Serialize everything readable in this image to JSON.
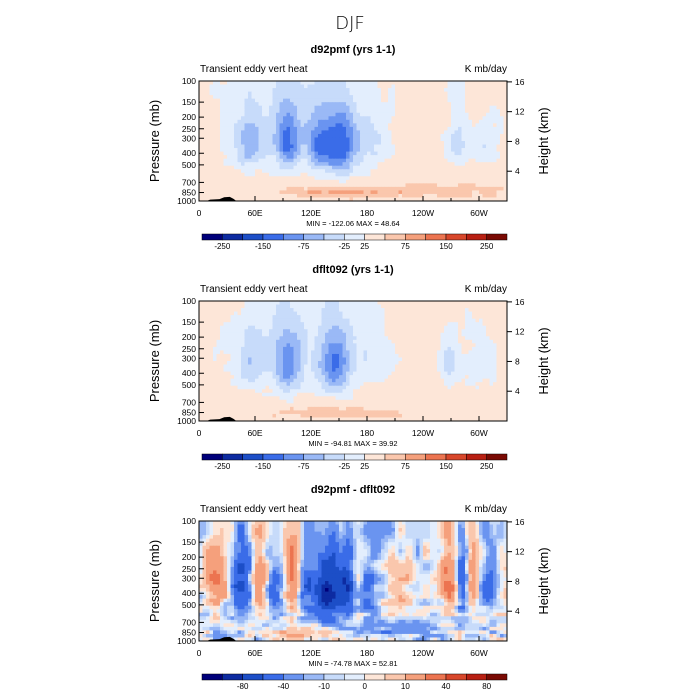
{
  "main_title": "DJF",
  "palette": [
    "#00007a",
    "#0d2ba1",
    "#1c4ec7",
    "#3a6ce8",
    "#6a94f0",
    "#9ab9f6",
    "#c7dbfa",
    "#e3eefd",
    "#fde6d8",
    "#fac7ad",
    "#f5a07c",
    "#ec7450",
    "#d8472b",
    "#b81f12",
    "#7a0a03"
  ],
  "chart_data": [
    {
      "type": "heatmap",
      "title": "d92pmf (yrs 1-1)",
      "left_label": "Transient eddy vert heat",
      "right_label": "K mb/day",
      "xlabel": "",
      "ylabel": "Pressure (mb)",
      "ylabel_right": "Height (km)",
      "x_ticks": [
        "0",
        "60E",
        "120E",
        "180",
        "120W",
        "60W"
      ],
      "x_tick_values": [
        0,
        60,
        120,
        180,
        240,
        300
      ],
      "xlim": [
        0,
        330
      ],
      "y_ticks": [
        "100",
        "150",
        "200",
        "250",
        "300",
        "400",
        "500",
        "700",
        "850",
        "1000"
      ],
      "y_tick_values": [
        100,
        150,
        200,
        250,
        300,
        400,
        500,
        700,
        850,
        1000
      ],
      "ylim": [
        1000,
        100
      ],
      "height_ticks": [
        "4",
        "8",
        "12",
        "16"
      ],
      "height_tick_values": [
        4,
        8,
        12,
        16
      ],
      "stats": "MIN = -122.06   MAX = 48.64",
      "colorbar_labels": [
        "-250",
        "-150",
        "-75",
        "-25",
        "25",
        "75",
        "150",
        "250"
      ],
      "colorbar_label_index": [
        1,
        3,
        5,
        7,
        8,
        10,
        12,
        14
      ],
      "features": [
        {
          "lon": 95,
          "p": 350,
          "amp": -90,
          "sx": 9,
          "sp": 140
        },
        {
          "lon": 130,
          "p": 350,
          "amp": -95,
          "sx": 10,
          "sp": 140
        },
        {
          "lon": 153,
          "p": 360,
          "amp": -120,
          "sx": 10,
          "sp": 150
        },
        {
          "lon": 52,
          "p": 350,
          "amp": -55,
          "sx": 12,
          "sp": 130
        },
        {
          "lon": 183,
          "p": 330,
          "amp": -40,
          "sx": 14,
          "sp": 130
        },
        {
          "lon": 278,
          "p": 330,
          "amp": -45,
          "sx": 8,
          "sp": 110
        },
        {
          "lon": 308,
          "p": 330,
          "amp": -35,
          "sx": 10,
          "sp": 110
        },
        {
          "lon": 100,
          "p": 250,
          "amp": -35,
          "sx": 45,
          "sp": 150
        },
        {
          "lon": 150,
          "p": 850,
          "amp": 45,
          "sx": 45,
          "sp": 60
        },
        {
          "lon": 270,
          "p": 820,
          "amp": 25,
          "sx": 60,
          "sp": 80
        }
      ],
      "base": 10,
      "noise": 10
    },
    {
      "type": "heatmap",
      "title": "dflt092 (yrs 1-1)",
      "left_label": "Transient eddy vert heat",
      "right_label": "K mb/day",
      "xlabel": "",
      "ylabel": "Pressure (mb)",
      "ylabel_right": "Height (km)",
      "x_ticks": [
        "0",
        "60E",
        "120E",
        "180",
        "120W",
        "60W"
      ],
      "x_tick_values": [
        0,
        60,
        120,
        180,
        240,
        300
      ],
      "xlim": [
        0,
        330
      ],
      "y_ticks": [
        "100",
        "150",
        "200",
        "250",
        "300",
        "400",
        "500",
        "700",
        "850",
        "1000"
      ],
      "y_tick_values": [
        100,
        150,
        200,
        250,
        300,
        400,
        500,
        700,
        850,
        1000
      ],
      "ylim": [
        1000,
        100
      ],
      "height_ticks": [
        "4",
        "8",
        "12",
        "16"
      ],
      "height_tick_values": [
        4,
        8,
        12,
        16
      ],
      "stats": "MIN = -94.81   MAX = 39.92",
      "colorbar_labels": [
        "-250",
        "-150",
        "-75",
        "-25",
        "25",
        "75",
        "150",
        "250"
      ],
      "colorbar_label_index": [
        1,
        3,
        5,
        7,
        8,
        10,
        12,
        14
      ],
      "features": [
        {
          "lon": 95,
          "p": 360,
          "amp": -85,
          "sx": 10,
          "sp": 150
        },
        {
          "lon": 145,
          "p": 360,
          "amp": -95,
          "sx": 11,
          "sp": 150
        },
        {
          "lon": 55,
          "p": 330,
          "amp": -45,
          "sx": 12,
          "sp": 130
        },
        {
          "lon": 268,
          "p": 330,
          "amp": -50,
          "sx": 7,
          "sp": 100
        },
        {
          "lon": 300,
          "p": 330,
          "amp": -25,
          "sx": 12,
          "sp": 120
        },
        {
          "lon": 180,
          "p": 300,
          "amp": -20,
          "sx": 20,
          "sp": 130
        },
        {
          "lon": 110,
          "p": 250,
          "amp": -30,
          "sx": 45,
          "sp": 150
        },
        {
          "lon": 150,
          "p": 850,
          "amp": 30,
          "sx": 60,
          "sp": 70
        }
      ],
      "base": 10,
      "noise": 8
    },
    {
      "type": "heatmap",
      "title": "d92pmf - dflt092",
      "left_label": "Transient eddy vert heat",
      "right_label": "K mb/day",
      "xlabel": "",
      "ylabel": "Pressure (mb)",
      "ylabel_right": "Height (km)",
      "x_ticks": [
        "0",
        "60E",
        "120E",
        "180",
        "120W",
        "60W"
      ],
      "x_tick_values": [
        0,
        60,
        120,
        180,
        240,
        300
      ],
      "xlim": [
        0,
        330
      ],
      "y_ticks": [
        "100",
        "150",
        "200",
        "250",
        "300",
        "400",
        "500",
        "700",
        "850",
        "1000"
      ],
      "y_tick_values": [
        100,
        150,
        200,
        250,
        300,
        400,
        500,
        700,
        850,
        1000
      ],
      "ylim": [
        1000,
        100
      ],
      "height_ticks": [
        "4",
        "8",
        "12",
        "16"
      ],
      "height_tick_values": [
        4,
        8,
        12,
        16
      ],
      "stats": "MIN = -74.78   MAX = 52.81",
      "colorbar_labels": [
        "-80",
        "-40",
        "-10",
        "0",
        "10",
        "40",
        "80"
      ],
      "colorbar_label_index": [
        2,
        4,
        6,
        8,
        10,
        12,
        14
      ],
      "features": [
        {
          "lon": 18,
          "p": 300,
          "amp": 45,
          "sx": 8,
          "sp": 140
        },
        {
          "lon": 45,
          "p": 330,
          "amp": -50,
          "sx": 7,
          "sp": 150
        },
        {
          "lon": 65,
          "p": 330,
          "amp": 30,
          "sx": 6,
          "sp": 150
        },
        {
          "lon": 80,
          "p": 350,
          "amp": -25,
          "sx": 6,
          "sp": 150
        },
        {
          "lon": 100,
          "p": 300,
          "amp": 40,
          "sx": 5,
          "sp": 200
        },
        {
          "lon": 115,
          "p": 330,
          "amp": -30,
          "sx": 6,
          "sp": 150
        },
        {
          "lon": 137,
          "p": 400,
          "amp": -70,
          "sx": 9,
          "sp": 170
        },
        {
          "lon": 158,
          "p": 380,
          "amp": -55,
          "sx": 7,
          "sp": 170
        },
        {
          "lon": 170,
          "p": 330,
          "amp": 25,
          "sx": 5,
          "sp": 150
        },
        {
          "lon": 180,
          "p": 400,
          "amp": -25,
          "sx": 8,
          "sp": 150
        },
        {
          "lon": 215,
          "p": 400,
          "amp": 15,
          "sx": 12,
          "sp": 160
        },
        {
          "lon": 268,
          "p": 300,
          "amp": 45,
          "sx": 6,
          "sp": 150
        },
        {
          "lon": 282,
          "p": 330,
          "amp": -40,
          "sx": 5,
          "sp": 150
        },
        {
          "lon": 293,
          "p": 330,
          "amp": 35,
          "sx": 5,
          "sp": 150
        },
        {
          "lon": 310,
          "p": 330,
          "amp": -25,
          "sx": 7,
          "sp": 150
        },
        {
          "lon": 325,
          "p": 330,
          "amp": 15,
          "sx": 6,
          "sp": 150
        },
        {
          "lon": 110,
          "p": 870,
          "amp": 25,
          "sx": 30,
          "sp": 60
        },
        {
          "lon": 200,
          "p": 800,
          "amp": -15,
          "sx": 40,
          "sp": 70
        }
      ],
      "base": 0,
      "noise": 14
    }
  ]
}
